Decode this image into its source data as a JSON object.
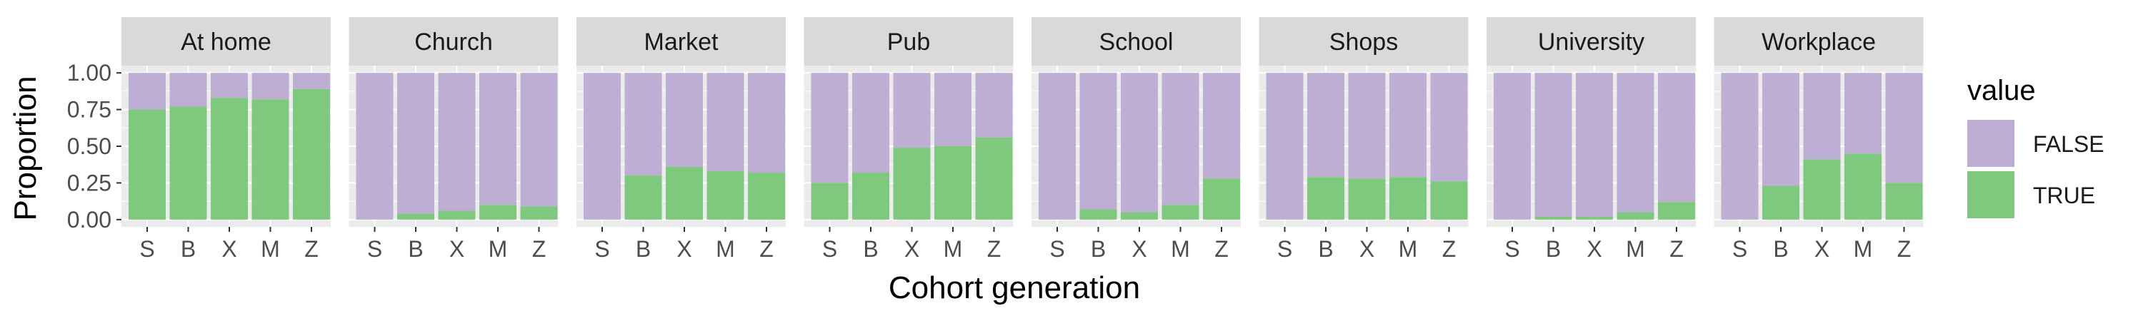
{
  "chart_data": {
    "type": "bar",
    "stacked": true,
    "normalized": true,
    "xlabel": "Cohort generation",
    "ylabel": "Proportion",
    "ylim": [
      0,
      1
    ],
    "yticks": [
      "0.00",
      "0.25",
      "0.50",
      "0.75",
      "1.00"
    ],
    "categories": [
      "S",
      "B",
      "X",
      "M",
      "Z"
    ],
    "legend": {
      "title": "value",
      "placement": "right",
      "entries": [
        {
          "label": "FALSE",
          "color": "#beaed4"
        },
        {
          "label": "TRUE",
          "color": "#7fc97f"
        }
      ]
    },
    "colors": {
      "FALSE": "#beaed4",
      "TRUE": "#7fc97f",
      "panel": "#ebebeb",
      "strip": "#d9d9d9"
    },
    "facets": [
      {
        "name": "At home",
        "true": [
          0.75,
          0.77,
          0.83,
          0.82,
          0.89
        ]
      },
      {
        "name": "Church",
        "true": [
          0.0,
          0.04,
          0.06,
          0.1,
          0.09
        ]
      },
      {
        "name": "Market",
        "true": [
          0.0,
          0.3,
          0.36,
          0.33,
          0.32
        ]
      },
      {
        "name": "Pub",
        "true": [
          0.25,
          0.32,
          0.49,
          0.5,
          0.56
        ]
      },
      {
        "name": "School",
        "true": [
          0.0,
          0.07,
          0.05,
          0.1,
          0.28
        ]
      },
      {
        "name": "Shops",
        "true": [
          0.0,
          0.29,
          0.28,
          0.29,
          0.26
        ]
      },
      {
        "name": "University",
        "true": [
          0.0,
          0.02,
          0.02,
          0.05,
          0.12
        ]
      },
      {
        "name": "Workplace",
        "true": [
          0.0,
          0.23,
          0.41,
          0.45,
          0.25
        ]
      }
    ]
  }
}
